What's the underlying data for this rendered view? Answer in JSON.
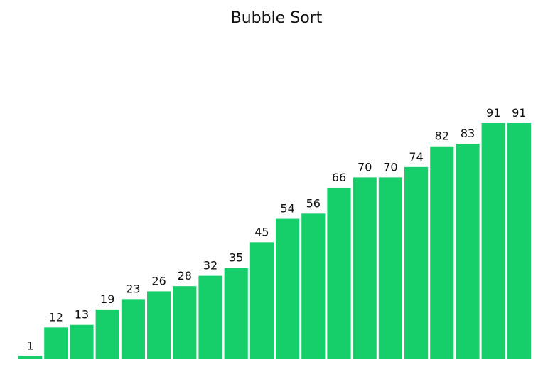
{
  "chart_data": {
    "type": "bar",
    "title": "Bubble Sort",
    "values": [
      1,
      12,
      13,
      19,
      23,
      26,
      28,
      32,
      35,
      45,
      54,
      56,
      66,
      70,
      70,
      74,
      82,
      83,
      91,
      91
    ],
    "color": "#17cf6a"
  }
}
